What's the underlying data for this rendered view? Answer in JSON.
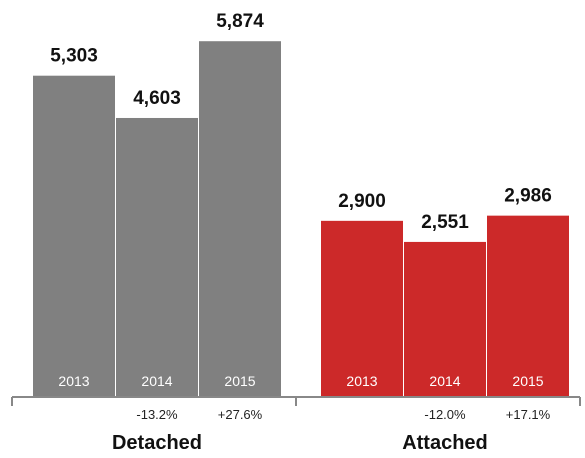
{
  "chart_data": {
    "type": "bar",
    "ylim": [
      0,
      6500
    ],
    "colors": {
      "Detached": "#808080",
      "Attached": "#cc2929",
      "axis": "#888888"
    },
    "groups": [
      {
        "name": "Detached",
        "categories": [
          "2013",
          "2014",
          "2015"
        ],
        "values": [
          5303,
          4603,
          5874
        ],
        "value_labels": [
          "5,303",
          "4,603",
          "5,874"
        ],
        "changes": [
          "",
          "-13.2%",
          "+27.6%"
        ]
      },
      {
        "name": "Attached",
        "categories": [
          "2013",
          "2014",
          "2015"
        ],
        "values": [
          2900,
          2551,
          2986
        ],
        "value_labels": [
          "2,900",
          "2,551",
          "2,986"
        ],
        "changes": [
          "",
          "-12.0%",
          "+17.1%"
        ]
      }
    ]
  }
}
